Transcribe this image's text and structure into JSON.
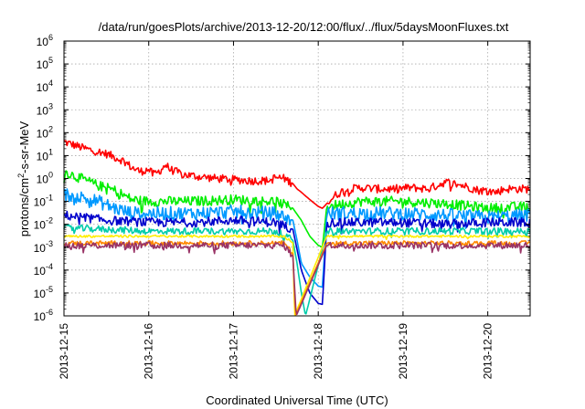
{
  "chart_data": {
    "type": "line",
    "title": "/data/run/goesPlots/archive/2013-12-20/12:00/flux/../flux/5daysMoonFluxes.txt",
    "xlabel": "Coordinated Universal Time (UTC)",
    "ylabel": {
      "base": "protons/cm",
      "sup": "2",
      "rest": "-s-sr-MeV"
    },
    "y_scale": "log",
    "ylim": [
      1e-06,
      1000000.0
    ],
    "y_ticks": [
      {
        "value": 1e-06,
        "base": "10",
        "exp": "-6"
      },
      {
        "value": 1e-05,
        "base": "10",
        "exp": "-5"
      },
      {
        "value": 0.0001,
        "base": "10",
        "exp": "-4"
      },
      {
        "value": 0.001,
        "base": "10",
        "exp": "-3"
      },
      {
        "value": 0.01,
        "base": "10",
        "exp": "-2"
      },
      {
        "value": 0.1,
        "base": "10",
        "exp": "-1"
      },
      {
        "value": 1,
        "base": "10",
        "exp": "0"
      },
      {
        "value": 10,
        "base": "10",
        "exp": "1"
      },
      {
        "value": 100,
        "base": "10",
        "exp": "2"
      },
      {
        "value": 1000,
        "base": "10",
        "exp": "3"
      },
      {
        "value": 10000,
        "base": "10",
        "exp": "4"
      },
      {
        "value": 100000,
        "base": "10",
        "exp": "5"
      },
      {
        "value": 1000000,
        "base": "10",
        "exp": "6"
      }
    ],
    "xlim": [
      0,
      5.5
    ],
    "x_ticks": [
      {
        "value": 0,
        "label": "2013-12-15"
      },
      {
        "value": 1,
        "label": "2013-12-16"
      },
      {
        "value": 2,
        "label": "2013-12-17"
      },
      {
        "value": 3,
        "label": "2013-12-18"
      },
      {
        "value": 4,
        "label": "2013-12-19"
      },
      {
        "value": 5,
        "label": "2013-12-20"
      }
    ],
    "grid": true,
    "legend": "none",
    "series": [
      {
        "color": "#ff0000",
        "noise": 0.04,
        "amp": 0.18,
        "points": [
          [
            0,
            40
          ],
          [
            0.25,
            20
          ],
          [
            0.5,
            12
          ],
          [
            0.7,
            6
          ],
          [
            0.8,
            3
          ],
          [
            0.9,
            2
          ],
          [
            1.0,
            2.5
          ],
          [
            1.05,
            1.5
          ],
          [
            1.1,
            1.8
          ],
          [
            1.15,
            2.5
          ],
          [
            1.2,
            4
          ],
          [
            1.25,
            2.5
          ],
          [
            1.4,
            1.5
          ],
          [
            1.6,
            1.2
          ],
          [
            1.8,
            1.0
          ],
          [
            2.0,
            0.9
          ],
          [
            2.2,
            0.8
          ],
          [
            2.4,
            0.8
          ],
          [
            2.5,
            1.1
          ],
          [
            2.6,
            1.0
          ],
          [
            2.7,
            0.6
          ],
          [
            2.75,
            0.35
          ],
          [
            2.8,
            0.25
          ],
          [
            2.9,
            0.12
          ],
          [
            3.0,
            0.06
          ],
          [
            3.05,
            0.05
          ],
          [
            3.1,
            0.08
          ],
          [
            3.2,
            0.18
          ],
          [
            3.3,
            0.3
          ],
          [
            3.4,
            0.35
          ],
          [
            3.5,
            0.4
          ],
          [
            3.7,
            0.35
          ],
          [
            3.9,
            0.35
          ],
          [
            4.1,
            0.4
          ],
          [
            4.3,
            0.35
          ],
          [
            4.5,
            0.7
          ],
          [
            4.7,
            0.5
          ],
          [
            4.9,
            0.3
          ],
          [
            5.0,
            0.3
          ],
          [
            5.1,
            0.25
          ],
          [
            5.2,
            0.35
          ],
          [
            5.5,
            0.35
          ]
        ]
      },
      {
        "color": "#00ee00",
        "noise": 0.04,
        "amp": 0.22,
        "points": [
          [
            0,
            2
          ],
          [
            0.2,
            1
          ],
          [
            0.4,
            0.5
          ],
          [
            0.6,
            0.3
          ],
          [
            0.8,
            0.12
          ],
          [
            1.0,
            0.1
          ],
          [
            1.5,
            0.1
          ],
          [
            2.0,
            0.12
          ],
          [
            2.5,
            0.1
          ],
          [
            2.7,
            0.05
          ],
          [
            2.8,
            0.015
          ],
          [
            2.9,
            0.003
          ],
          [
            3.0,
            0.0012
          ],
          [
            3.05,
            0.001
          ],
          [
            3.1,
            0.06
          ],
          [
            3.5,
            0.1
          ],
          [
            4.0,
            0.1
          ],
          [
            4.5,
            0.08
          ],
          [
            5.0,
            0.05
          ],
          [
            5.5,
            0.06
          ]
        ]
      },
      {
        "color": "#0099ff",
        "noise": 0.05,
        "amp": 0.3,
        "points": [
          [
            0,
            0.2
          ],
          [
            0.2,
            0.15
          ],
          [
            0.4,
            0.1
          ],
          [
            0.6,
            0.05
          ],
          [
            0.8,
            0.03
          ],
          [
            1.0,
            0.03
          ],
          [
            1.5,
            0.03
          ],
          [
            2.0,
            0.035
          ],
          [
            2.5,
            0.03
          ],
          [
            2.7,
            0.015
          ],
          [
            2.75,
            0.002
          ],
          [
            2.8,
            0.0002
          ],
          [
            2.9,
            5e-05
          ],
          [
            3.0,
            2e-05
          ],
          [
            3.05,
            1.8e-05
          ],
          [
            3.1,
            0.03
          ],
          [
            3.5,
            0.03
          ],
          [
            4.0,
            0.03
          ],
          [
            4.5,
            0.025
          ],
          [
            5.0,
            0.02
          ],
          [
            5.5,
            0.025
          ]
        ]
      },
      {
        "color": "#0000cc",
        "noise": 0.05,
        "amp": 0.2,
        "points": [
          [
            0,
            0.025
          ],
          [
            0.5,
            0.015
          ],
          [
            1.0,
            0.012
          ],
          [
            1.5,
            0.012
          ],
          [
            2.0,
            0.015
          ],
          [
            2.5,
            0.012
          ],
          [
            2.7,
            0.006
          ],
          [
            2.75,
            0.0008
          ],
          [
            2.8,
            0.0001
          ],
          [
            2.9,
            1e-05
          ],
          [
            3.0,
            3.5e-06
          ],
          [
            3.05,
            3.2e-06
          ],
          [
            3.1,
            0.012
          ],
          [
            3.5,
            0.012
          ],
          [
            4.0,
            0.012
          ],
          [
            4.5,
            0.01
          ],
          [
            5.0,
            0.012
          ],
          [
            5.5,
            0.012
          ]
        ]
      },
      {
        "color": "#00ccaa",
        "noise": 0.05,
        "amp": 0.15,
        "points": [
          [
            0,
            0.007
          ],
          [
            0.5,
            0.006
          ],
          [
            1.0,
            0.005
          ],
          [
            1.5,
            0.005
          ],
          [
            2.0,
            0.005
          ],
          [
            2.5,
            0.005
          ],
          [
            2.7,
            0.002
          ],
          [
            2.75,
            0.0002
          ],
          [
            2.8,
            1e-05
          ],
          [
            2.85,
            1e-06
          ],
          [
            3.1,
            0.005
          ],
          [
            3.5,
            0.005
          ],
          [
            4.0,
            0.005
          ],
          [
            4.5,
            0.005
          ],
          [
            5.0,
            0.005
          ],
          [
            5.5,
            0.005
          ]
        ]
      },
      {
        "color": "#ffee00",
        "noise": 0.03,
        "amp": 0.05,
        "points": [
          [
            0,
            0.003
          ],
          [
            1.0,
            0.003
          ],
          [
            2.0,
            0.003
          ],
          [
            2.6,
            0.003
          ],
          [
            2.7,
            0.0015
          ],
          [
            2.72,
            1e-06
          ],
          [
            3.1,
            0.003
          ],
          [
            4.0,
            0.003
          ],
          [
            5.0,
            0.003
          ],
          [
            5.5,
            0.003
          ]
        ]
      },
      {
        "color": "#ff8800",
        "noise": 0.03,
        "amp": 0.1,
        "points": [
          [
            0,
            0.0015
          ],
          [
            1.0,
            0.0015
          ],
          [
            2.0,
            0.0015
          ],
          [
            2.6,
            0.0015
          ],
          [
            2.7,
            0.0005
          ],
          [
            2.73,
            1e-06
          ],
          [
            3.1,
            0.0015
          ],
          [
            4.0,
            0.0015
          ],
          [
            5.0,
            0.0015
          ],
          [
            5.5,
            0.0015
          ]
        ]
      },
      {
        "color": "#993366",
        "noise": 0.06,
        "amp": 0.15,
        "points": [
          [
            0,
            0.0012
          ],
          [
            0.5,
            0.0012
          ],
          [
            1.0,
            0.0012
          ],
          [
            1.5,
            0.0012
          ],
          [
            2.0,
            0.0012
          ],
          [
            2.6,
            0.0012
          ],
          [
            2.7,
            0.0004
          ],
          [
            2.74,
            1e-06
          ],
          [
            3.1,
            0.0012
          ],
          [
            3.5,
            0.0012
          ],
          [
            4.0,
            0.0012
          ],
          [
            4.5,
            0.0012
          ],
          [
            5.0,
            0.0012
          ],
          [
            5.5,
            0.0012
          ]
        ]
      }
    ]
  }
}
